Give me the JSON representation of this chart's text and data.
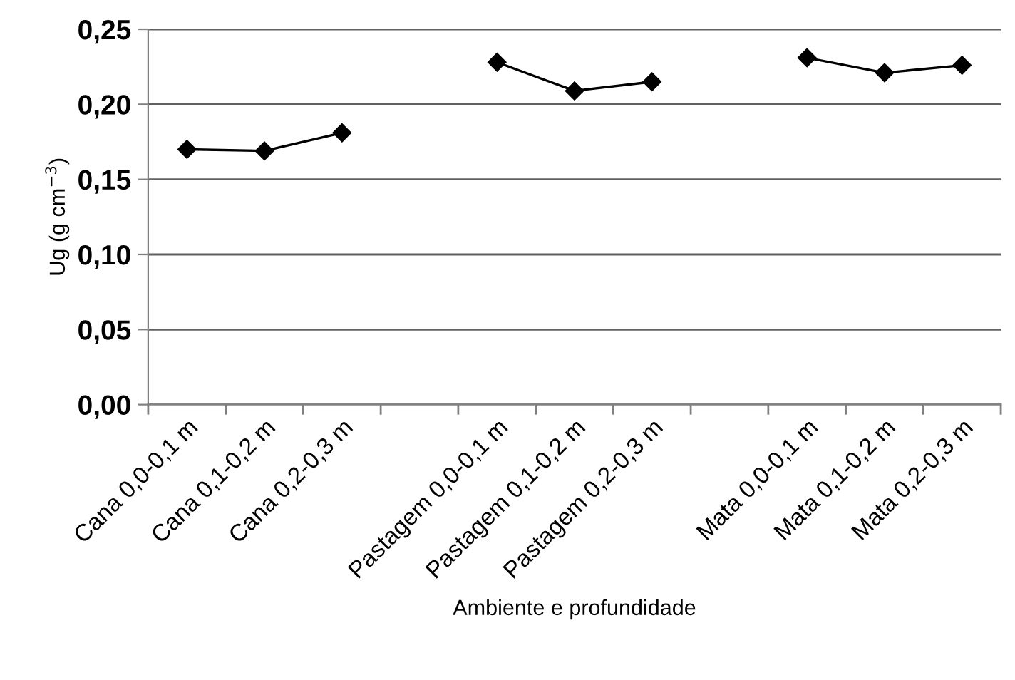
{
  "chart_data": {
    "type": "line",
    "xlabel": "Ambiente e profundidade",
    "ylabel": "Ug (g cm$^{−3}$)",
    "categories": [
      "Cana 0,0-0,1 m",
      "Cana 0,1-0,2 m",
      "Cana 0,2-0,3 m",
      null,
      "Pastagem 0,0-0,1 m",
      "Pastagem 0,1-0,2 m",
      "Pastagem 0,2-0,3 m",
      null,
      "Mata 0,0-0,1 m",
      "Mata 0,1-0,2 m",
      "Mata 0,2-0,3 m"
    ],
    "series": [
      {
        "color": "#000000",
        "values": [
          0.17,
          0.169,
          0.181,
          null,
          0.228,
          0.209,
          0.215,
          null,
          0.231,
          0.221,
          0.226
        ]
      }
    ],
    "ylim": [
      0,
      0.25
    ],
    "yticks": [
      {
        "value": 0,
        "label": "0,00"
      },
      {
        "value": 0.05,
        "label": "0,05"
      },
      {
        "value": 0.1,
        "label": "0,10"
      },
      {
        "value": 0.15,
        "label": "0,15"
      },
      {
        "value": 0.2,
        "label": "0,20"
      },
      {
        "value": 0.25,
        "label": "0,25"
      }
    ],
    "grid": "y",
    "marker": "diamond",
    "line_style": "solid",
    "legend": false
  }
}
